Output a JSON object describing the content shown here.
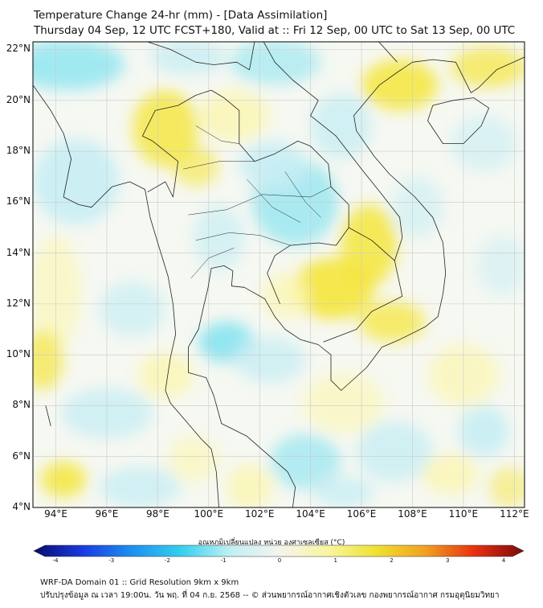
{
  "header": {
    "title_line1": "Temperature Change 24-hr (mm) - [Data Assimilation]",
    "title_line2": "Thursday 04 Sep, 12 UTC FCST+180, Valid at :: Fri 12 Sep, 00 UTC to Sat 13 Sep, 00 UTC"
  },
  "map": {
    "lat_labels": [
      "22°N",
      "20°N",
      "18°N",
      "16°N",
      "14°N",
      "12°N",
      "10°N",
      "8°N",
      "6°N",
      "4°N"
    ],
    "lon_labels": [
      "94°E",
      "96°E",
      "98°E",
      "100°E",
      "102°E",
      "104°E",
      "106°E",
      "108°E",
      "110°E",
      "112°E"
    ],
    "lat_range": [
      4,
      22.3
    ],
    "lon_range": [
      93.1,
      112.4
    ],
    "field_colors": {
      "warm": "#f5e63c",
      "pale_warm": "#fbf6b8",
      "neutral": "#f4f7f4",
      "pale_cool": "#c8eef4",
      "cool": "#5ddcf0"
    },
    "coast_color": "#222222"
  },
  "colorbar": {
    "label": "อุณหภูมิเปลี่ยนแปลง หน่วย องศาเซลเซียส (°C)",
    "ticks": [
      "-4",
      "-3",
      "-2",
      "-1",
      "0",
      "1",
      "2",
      "3",
      "4"
    ],
    "stops": [
      "#0a0a6e",
      "#1a3be0",
      "#1e8ff0",
      "#35cfee",
      "#bff0f4",
      "#f4f4ee",
      "#f8f6a0",
      "#f0e030",
      "#f0a020",
      "#e83010",
      "#7a0a0a"
    ]
  },
  "footer": {
    "line1": "WRF-DA Domain 01 :: Grid Resolution 9km x 9km",
    "line2": "ปรับปรุงข้อมูล ณ เวลา 19:00น. วัน พฤ. ที่ 04 ก.ย. 2568 -- © ส่วนพยากรณ์อากาศเชิงตัวเลข กองพยากรณ์อากาศ กรมอุตุนิยมวิทยา"
  }
}
